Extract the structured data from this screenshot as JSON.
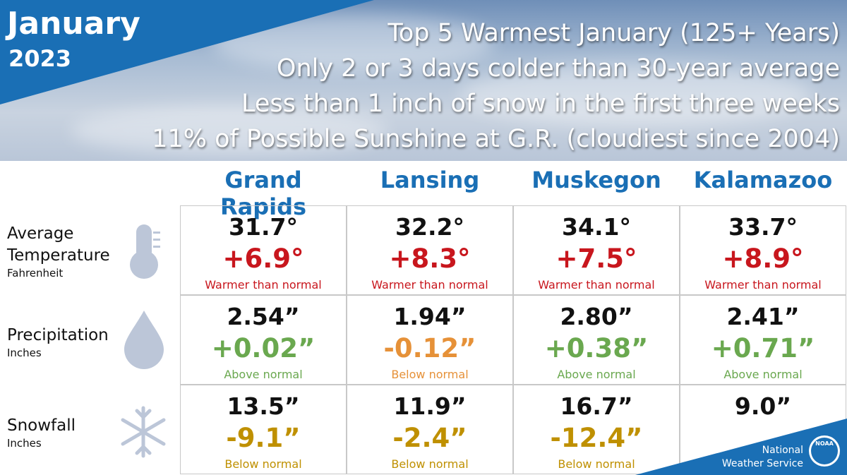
{
  "header": {
    "month": "January",
    "year": "2023",
    "bullets": [
      "Top 5 Warmest January (125+ Years)",
      "Only 2 or 3 days colder than 30-year average",
      "Less than 1 inch of snow in the first three weeks",
      "11% of Possible Sunshine at G.R. (cloudiest since 2004)"
    ]
  },
  "table": {
    "columns": [
      "Grand Rapids",
      "Lansing",
      "Muskegon",
      "Kalamazoo"
    ],
    "rows": [
      {
        "label": "Average Temperature",
        "unit": "Fahrenheit",
        "cells": [
          {
            "value": "31.7°",
            "departure": "+6.9°",
            "note": "Warmer than normal",
            "color": "#c8161d"
          },
          {
            "value": "32.2°",
            "departure": "+8.3°",
            "note": "Warmer than normal",
            "color": "#c8161d"
          },
          {
            "value": "34.1°",
            "departure": "+7.5°",
            "note": "Warmer than normal",
            "color": "#c8161d"
          },
          {
            "value": "33.7°",
            "departure": "+8.9°",
            "note": "Warmer than normal",
            "color": "#c8161d"
          }
        ]
      },
      {
        "label": "Precipitation",
        "unit": "Inches",
        "cells": [
          {
            "value": "2.54”",
            "departure": "+0.02”",
            "note": "Above normal",
            "color": "#6aa84f"
          },
          {
            "value": "1.94”",
            "departure": "-0.12”",
            "note": "Below normal",
            "color": "#e69138"
          },
          {
            "value": "2.80”",
            "departure": "+0.38”",
            "note": "Above normal",
            "color": "#6aa84f"
          },
          {
            "value": "2.41”",
            "departure": "+0.71”",
            "note": "Above normal",
            "color": "#6aa84f"
          }
        ]
      },
      {
        "label": "Snowfall",
        "unit": "Inches",
        "cells": [
          {
            "value": "13.5”",
            "departure": "-9.1”",
            "note": "Below normal",
            "color": "#bf9000"
          },
          {
            "value": "11.9”",
            "departure": "-2.4”",
            "note": "Below normal",
            "color": "#bf9000"
          },
          {
            "value": "16.7”",
            "departure": "-12.4”",
            "note": "Below normal",
            "color": "#bf9000"
          },
          {
            "value": "9.0”"
          }
        ]
      }
    ]
  },
  "footer": {
    "line1": "National",
    "line2": "Weather Service",
    "logo": "NOAA"
  }
}
